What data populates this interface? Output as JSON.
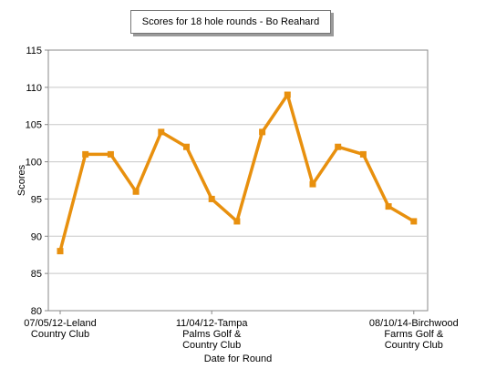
{
  "chart_data": {
    "type": "line",
    "title": "Scores for 18 hole rounds - Bo Reahard",
    "xlabel": "Date for Round",
    "ylabel": "Scores",
    "ylim": [
      80,
      115
    ],
    "yticks": [
      80,
      85,
      90,
      95,
      100,
      105,
      110,
      115
    ],
    "grid": true,
    "x_tick_labels": [
      {
        "index": 0,
        "lines": [
          "07/05/12-Leland",
          "Country Club"
        ]
      },
      {
        "index": 6,
        "lines": [
          "11/04/12-Tampa",
          "Palms Golf &",
          "Country Club"
        ]
      },
      {
        "index": 14,
        "lines": [
          "08/10/14-Birchwood",
          "Farms Golf &",
          "Country Club"
        ]
      }
    ],
    "series": [
      {
        "color": "#e8900e",
        "values": [
          88,
          101,
          101,
          96,
          104,
          102,
          95,
          92,
          104,
          109,
          97,
          102,
          101,
          94,
          92
        ]
      }
    ]
  }
}
